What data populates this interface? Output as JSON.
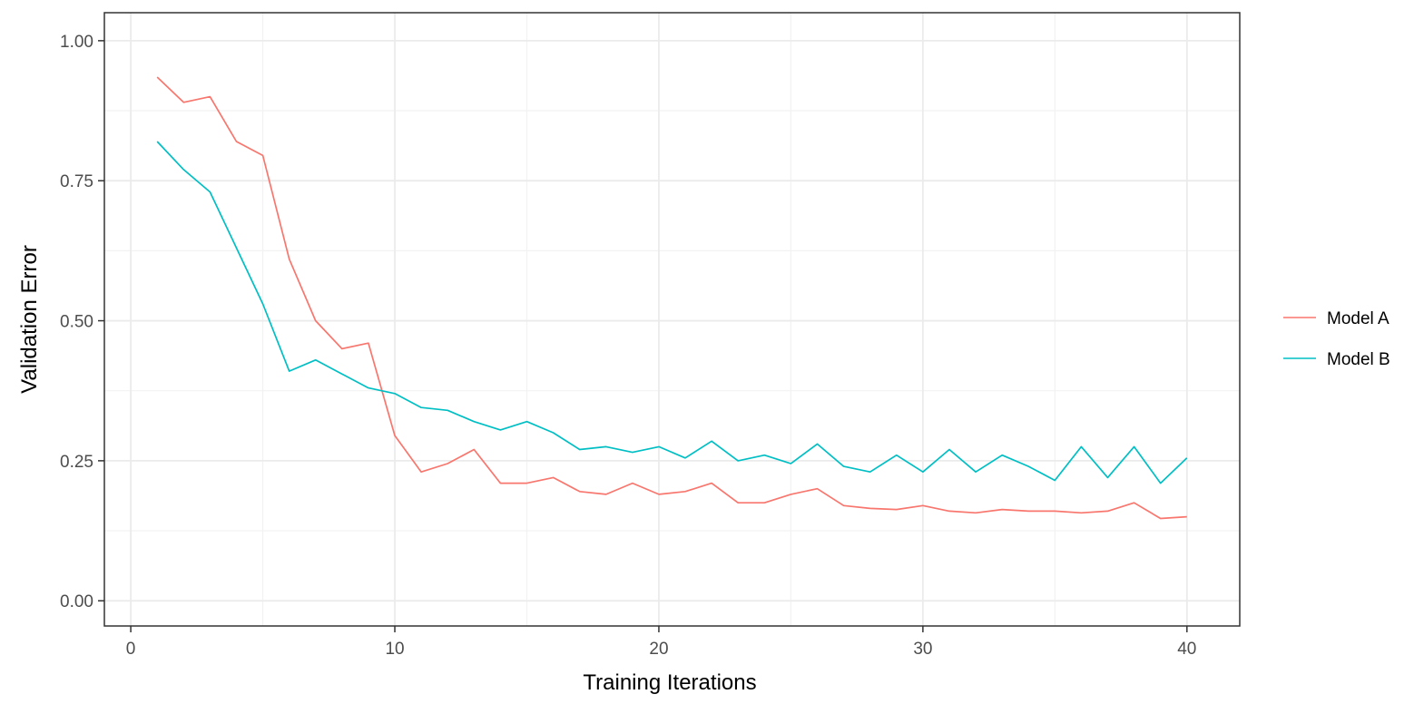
{
  "chart_data": {
    "type": "line",
    "title": "",
    "xlabel": "Training Iterations",
    "ylabel": "Validation Error",
    "xlim": [
      -1,
      42
    ],
    "ylim": [
      -0.045,
      1.05
    ],
    "x_ticks": [
      0,
      10,
      20,
      30,
      40
    ],
    "y_ticks": [
      0.0,
      0.25,
      0.5,
      0.75,
      1.0
    ],
    "x_tick_labels": [
      "0",
      "10",
      "20",
      "30",
      "40"
    ],
    "y_tick_labels": [
      "0.00",
      "0.25",
      "0.50",
      "0.75",
      "1.00"
    ],
    "grid": true,
    "legend_position": "right",
    "x": [
      1,
      2,
      3,
      4,
      5,
      6,
      7,
      8,
      9,
      10,
      11,
      12,
      13,
      14,
      15,
      16,
      17,
      18,
      19,
      20,
      21,
      22,
      23,
      24,
      25,
      26,
      27,
      28,
      29,
      30,
      31,
      32,
      33,
      34,
      35,
      36,
      37,
      38,
      39,
      40
    ],
    "series": [
      {
        "name": "Model A",
        "color": "#F8766D",
        "values": [
          0.935,
          0.89,
          0.9,
          0.82,
          0.795,
          0.61,
          0.5,
          0.45,
          0.46,
          0.295,
          0.23,
          0.245,
          0.27,
          0.21,
          0.21,
          0.22,
          0.195,
          0.19,
          0.21,
          0.19,
          0.195,
          0.21,
          0.175,
          0.175,
          0.19,
          0.2,
          0.17,
          0.165,
          0.163,
          0.17,
          0.16,
          0.157,
          0.163,
          0.16,
          0.16,
          0.157,
          0.16,
          0.175,
          0.147,
          0.15
        ]
      },
      {
        "name": "Model B",
        "color": "#00BFC4",
        "values": [
          0.82,
          0.77,
          0.73,
          0.63,
          0.53,
          0.41,
          0.43,
          0.405,
          0.38,
          0.37,
          0.345,
          0.34,
          0.32,
          0.305,
          0.32,
          0.3,
          0.27,
          0.275,
          0.265,
          0.275,
          0.255,
          0.285,
          0.25,
          0.26,
          0.245,
          0.28,
          0.24,
          0.23,
          0.26,
          0.23,
          0.27,
          0.23,
          0.26,
          0.24,
          0.215,
          0.275,
          0.22,
          0.275,
          0.21,
          0.255
        ]
      }
    ]
  }
}
